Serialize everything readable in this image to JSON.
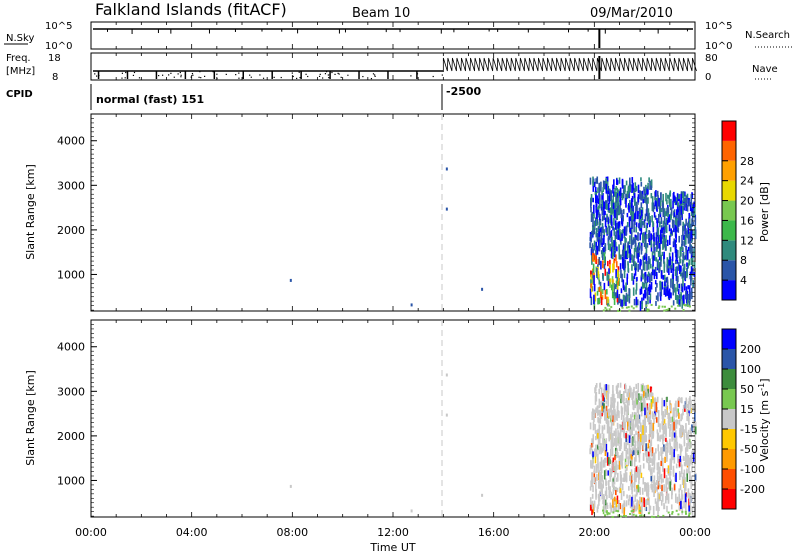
{
  "header": {
    "title": "Falkland Islands (fitACF)",
    "beam": "Beam 10",
    "date": "09/Mar/2010"
  },
  "strips": {
    "nsky_label": "N.Sky",
    "nsearch_label": "N.Search",
    "freq_label_1": "Freq.",
    "freq_label_2": "[MHz]",
    "nave_label": "Nave",
    "cpid_label": "CPID",
    "nsky_ticks": [
      "10^5",
      "10^0"
    ],
    "nsearch_ticks": [
      "10^5",
      "10^0"
    ],
    "freq_ticks": [
      "18",
      "8"
    ],
    "nave_ticks": [
      "80",
      "0"
    ],
    "cpid_segments": [
      {
        "label": "normal (fast) 151",
        "start_hour": 0
      },
      {
        "label": "-2500",
        "start_hour": 14.0
      }
    ]
  },
  "xaxis": {
    "label": "Time UT",
    "ticks": [
      "00:00",
      "04:00",
      "08:00",
      "12:00",
      "16:00",
      "20:00",
      "00:00"
    ]
  },
  "colors": {
    "power": [
      "#0000ff",
      "#2a55a8",
      "#2f8a7d",
      "#3cb84a",
      "#78c850",
      "#e8d800",
      "#ffa000",
      "#ff6400",
      "#ff0000"
    ],
    "velocity": [
      "#ff0000",
      "#ff4e00",
      "#ff9a00",
      "#ffc800",
      "#c8c8c8",
      "#78c850",
      "#3c8c3c",
      "#2a55a8",
      "#0000ff"
    ]
  },
  "chart_data": [
    {
      "type": "heatmap",
      "title": "",
      "xlabel": "Time UT",
      "ylabel": "Slant Range [km]",
      "xlim": [
        0,
        24
      ],
      "ylim": [
        180,
        4600
      ],
      "yticks": [
        1000,
        2000,
        3000,
        4000
      ],
      "colorbar": {
        "label": "Power [dB]",
        "range": [
          0,
          30
        ],
        "ticks": [
          4,
          8,
          12,
          16,
          20,
          24,
          28
        ]
      },
      "data_regions": [
        {
          "t_start": 19.8,
          "t_end": 24.0,
          "range_start": 300,
          "range_end": 3200,
          "dominant": "4-12 dB",
          "note": "dense backscatter after 20 UT"
        },
        {
          "t_start": 19.8,
          "t_end": 21.0,
          "range_start": 400,
          "range_end": 1500,
          "dominant": "12-28 dB"
        }
      ],
      "isolated_points": [
        {
          "t": 7.9,
          "range": 900
        },
        {
          "t": 12.7,
          "range": 350
        },
        {
          "t": 14.1,
          "range": 3400
        },
        {
          "t": 14.1,
          "range": 2500
        },
        {
          "t": 15.5,
          "range": 700
        }
      ]
    },
    {
      "type": "heatmap",
      "title": "",
      "xlabel": "Time UT",
      "ylabel": "Slant Range [km]",
      "xlim": [
        0,
        24
      ],
      "ylim": [
        180,
        4600
      ],
      "yticks": [
        1000,
        2000,
        3000,
        4000
      ],
      "colorbar": {
        "label": "Velocity [m s^-1]",
        "levels": [
          200,
          100,
          50,
          15,
          -15,
          -50,
          -100,
          -200
        ]
      },
      "data_regions": [
        {
          "t_start": 19.8,
          "t_end": 24.0,
          "range_start": 300,
          "range_end": 3200,
          "dominant": "-15 to 15 m/s (grey)"
        }
      ],
      "isolated_points": [
        {
          "t": 7.9,
          "range": 900
        },
        {
          "t": 12.7,
          "range": 350
        },
        {
          "t": 14.1,
          "range": 3400
        },
        {
          "t": 14.1,
          "range": 2500
        },
        {
          "t": 15.5,
          "range": 700
        }
      ]
    }
  ]
}
